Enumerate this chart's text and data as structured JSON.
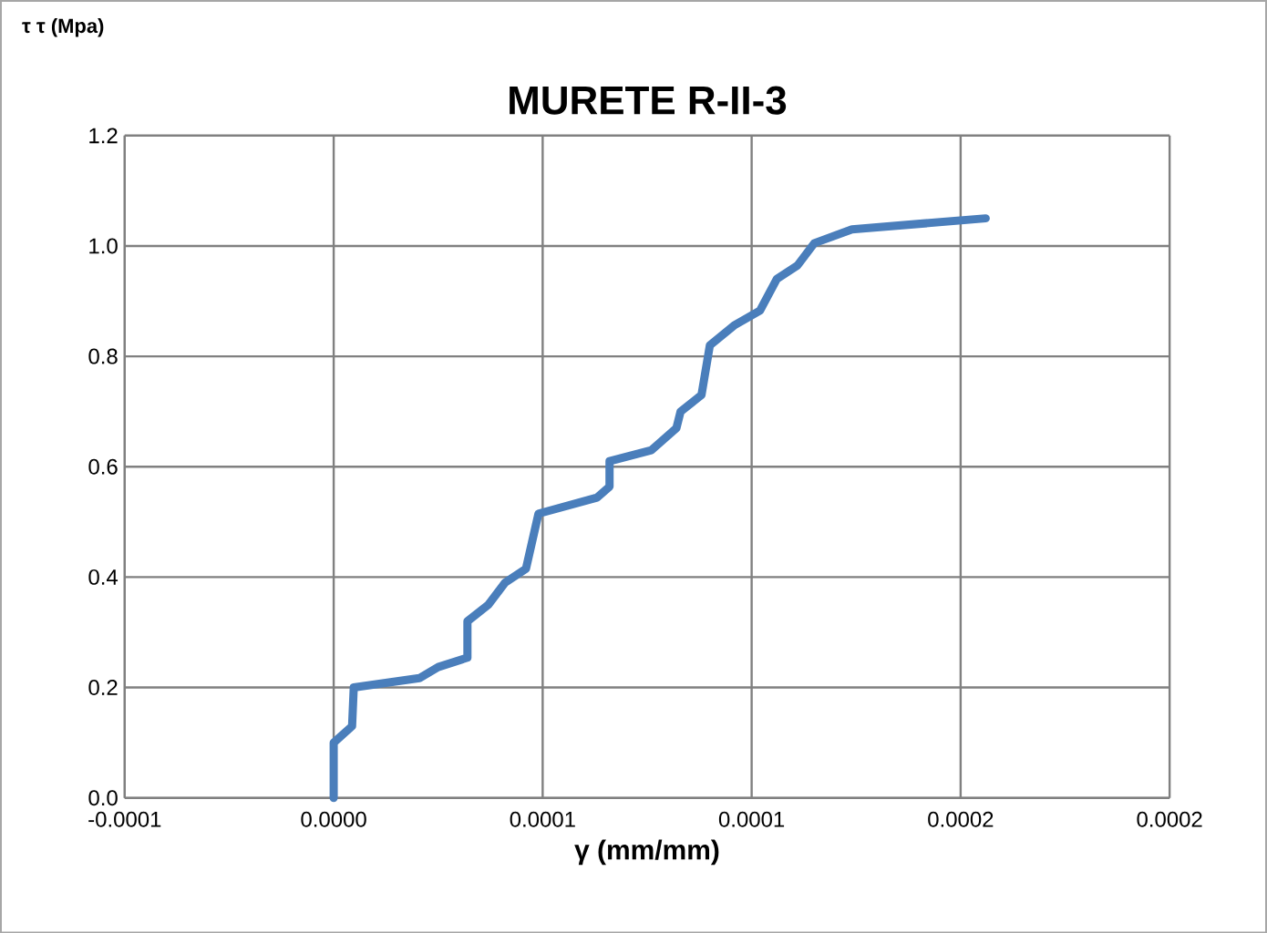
{
  "chart_data": {
    "type": "line",
    "title": "MURETE R-II-3",
    "xlabel": "γ (mm/mm)",
    "ylabel": "τ τ (Mpa)",
    "series": [
      {
        "color": "#4a7ebb",
        "x": [
          0,
          0,
          4.4e-06,
          4.8e-06,
          2.05e-05,
          2.5e-05,
          3.2e-05,
          3.2e-05,
          3.7e-05,
          4.1e-05,
          4.6e-05,
          4.9e-05,
          6.3e-05,
          6.6e-05,
          6.6e-05,
          7.6e-05,
          8.2e-05,
          8.3e-05,
          8.8e-05,
          9e-05,
          9.6e-05,
          0.000102,
          0.000106,
          0.000111,
          0.000115,
          0.000124,
          0.000156
        ],
        "values": [
          0,
          0.1,
          0.13,
          0.2,
          0.217,
          0.237,
          0.254,
          0.32,
          0.35,
          0.39,
          0.415,
          0.515,
          0.544,
          0.564,
          0.61,
          0.63,
          0.67,
          0.7,
          0.73,
          0.82,
          0.857,
          0.883,
          0.94,
          0.965,
          1.005,
          1.03,
          1.05
        ]
      }
    ],
    "xlim": [
      -5e-05,
      0.0002
    ],
    "xticks": [
      {
        "value": -5e-05,
        "label": "-0.0001"
      },
      {
        "value": 0,
        "label": "0.0000"
      },
      {
        "value": 5e-05,
        "label": "0.0001"
      },
      {
        "value": 0.0001,
        "label": "0.0001"
      },
      {
        "value": 0.00015,
        "label": "0.0002"
      },
      {
        "value": 0.0002,
        "label": "0.0002"
      }
    ],
    "ylim": [
      0,
      1.2
    ],
    "yticks": [
      {
        "value": 0,
        "label": "0.0"
      },
      {
        "value": 0.2,
        "label": "0.2"
      },
      {
        "value": 0.4,
        "label": "0.4"
      },
      {
        "value": 0.6,
        "label": "0.6"
      },
      {
        "value": 0.8,
        "label": "0.8"
      },
      {
        "value": 1.0,
        "label": "1.0"
      },
      {
        "value": 1.2,
        "label": "1.2"
      }
    ],
    "grid": true,
    "marker": "none",
    "line_style": "solid"
  }
}
